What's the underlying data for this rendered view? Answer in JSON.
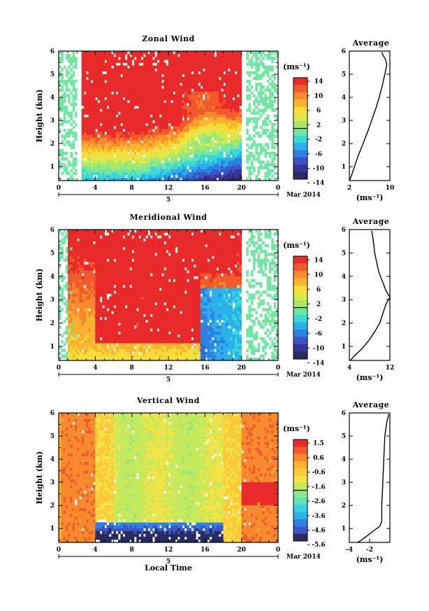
{
  "panels": [
    {
      "title": "Zonal Wind",
      "ylabel": "Height (km)",
      "yticks": [
        "1",
        "2",
        "3",
        "4",
        "5",
        "6"
      ],
      "xticks": [
        "0",
        "4",
        "8",
        "12",
        "16",
        "20",
        "0"
      ],
      "day_label": "5",
      "date_label": "Mar 2014",
      "colorbar": {
        "unit": "(ms⁻¹)",
        "ticks": [
          "14",
          "10",
          "6",
          "2",
          "-2",
          "-6",
          "-10",
          "-14"
        ],
        "colors": [
          "#e82a2a",
          "#f05a2c",
          "#f7892e",
          "#fbb22f",
          "#f9dc39",
          "#dbe94d",
          "#a9e76a",
          "#72e6a2",
          "#3bd8d8",
          "#2ab0ea",
          "#2f80e0",
          "#3c54c4",
          "#3a3595",
          "#2a2b60"
        ]
      },
      "average": {
        "title": "Average",
        "xticks": [
          "2",
          "10"
        ],
        "xlabel": "(ms⁻¹)",
        "xlim": [
          2,
          10
        ],
        "profile": [
          [
            2.0,
            0.4
          ],
          [
            2.4,
            0.6
          ],
          [
            3.0,
            1.0
          ],
          [
            3.8,
            1.5
          ],
          [
            4.7,
            2.0
          ],
          [
            5.6,
            2.5
          ],
          [
            6.4,
            3.0
          ],
          [
            7.2,
            3.5
          ],
          [
            7.9,
            4.0
          ],
          [
            8.5,
            4.5
          ],
          [
            9.0,
            5.0
          ],
          [
            9.4,
            5.4
          ],
          [
            9.2,
            5.6
          ],
          [
            8.7,
            5.8
          ],
          [
            8.4,
            5.95
          ]
        ]
      }
    },
    {
      "title": "Meridional Wind",
      "ylabel": "Height (km)",
      "yticks": [
        "1",
        "2",
        "3",
        "4",
        "5",
        "6"
      ],
      "xticks": [
        "0",
        "4",
        "8",
        "12",
        "16",
        "20",
        "0"
      ],
      "day_label": "5",
      "date_label": "Mar 2014",
      "colorbar": {
        "unit": "(ms⁻¹)",
        "ticks": [
          "14",
          "10",
          "6",
          "2",
          "-2",
          "-6",
          "-10",
          "-14"
        ],
        "colors": [
          "#e82a2a",
          "#f05a2c",
          "#f7892e",
          "#fbb22f",
          "#f9dc39",
          "#dbe94d",
          "#a9e76a",
          "#72e6a2",
          "#3bd8d8",
          "#2ab0ea",
          "#2f80e0",
          "#3c54c4",
          "#3a3595",
          "#2a2b60"
        ]
      },
      "average": {
        "title": "Average",
        "xticks": [
          "4",
          "12"
        ],
        "xlabel": "(ms⁻¹)",
        "xlim": [
          4,
          12
        ],
        "profile": [
          [
            4.2,
            0.4
          ],
          [
            5.0,
            0.6
          ],
          [
            6.5,
            0.9
          ],
          [
            8.0,
            1.3
          ],
          [
            9.2,
            1.7
          ],
          [
            10.0,
            2.0
          ],
          [
            10.6,
            2.4
          ],
          [
            11.2,
            2.8
          ],
          [
            12.0,
            3.1
          ],
          [
            11.2,
            3.4
          ],
          [
            10.5,
            3.8
          ],
          [
            9.8,
            4.2
          ],
          [
            9.4,
            4.6
          ],
          [
            9.0,
            5.0
          ],
          [
            8.8,
            5.4
          ],
          [
            8.6,
            5.7
          ],
          [
            8.4,
            5.95
          ]
        ]
      }
    },
    {
      "title": "Vertical Wind",
      "ylabel": "Height (km)",
      "yticks": [
        "1",
        "2",
        "3",
        "4",
        "5",
        "6"
      ],
      "xticks": [
        "0",
        "4",
        "8",
        "12",
        "16",
        "20",
        "0"
      ],
      "day_label": "5",
      "date_label": "Mar 2014",
      "xlabel": "Local Time",
      "colorbar": {
        "unit": "(ms⁻¹)",
        "ticks": [
          "1.5",
          "0.6",
          "-0.6",
          "-1.6",
          "-2.6",
          "-3.6",
          "-4.6",
          "-5.6"
        ],
        "colors": [
          "#e82a2a",
          "#f05a2c",
          "#f7892e",
          "#fbb22f",
          "#fbca3a",
          "#f2e348",
          "#c4e95c",
          "#8fe888",
          "#5ee0b8",
          "#38d0e0",
          "#2ab0ea",
          "#2f80e0",
          "#3c54c4",
          "#2a2b60"
        ]
      },
      "average": {
        "title": "Average",
        "xticks": [
          "-4",
          "-2"
        ],
        "xlabel": "(ms⁻¹)",
        "xlim": [
          -4,
          0
        ],
        "profile": [
          [
            -3.2,
            0.4
          ],
          [
            -2.8,
            0.5
          ],
          [
            -2.2,
            0.7
          ],
          [
            -1.6,
            0.9
          ],
          [
            -1.0,
            1.1
          ],
          [
            -0.8,
            1.3
          ],
          [
            -0.8,
            2.0
          ],
          [
            -0.7,
            3.0
          ],
          [
            -0.6,
            4.0
          ],
          [
            -0.5,
            5.0
          ],
          [
            -0.3,
            5.6
          ],
          [
            -0.1,
            5.95
          ]
        ]
      }
    }
  ],
  "chart_data": [
    {
      "type": "heatmap",
      "title": "Zonal Wind",
      "xlabel": "",
      "ylabel": "Height (km)",
      "xlim": [
        0,
        24
      ],
      "ylim": [
        0.4,
        6
      ],
      "colorbar_range": [
        -14,
        14
      ],
      "description_values": {
        "x_hours": [
          0,
          2,
          4,
          8,
          12,
          16,
          19,
          21,
          24
        ]
      }
    },
    {
      "type": "heatmap",
      "title": "Meridional Wind",
      "xlabel": "",
      "ylabel": "Height (km)",
      "xlim": [
        0,
        24
      ],
      "ylim": [
        0.4,
        6
      ],
      "colorbar_range": [
        -14,
        14
      ]
    },
    {
      "type": "heatmap",
      "title": "Vertical Wind",
      "xlabel": "Local Time",
      "ylabel": "Height (km)",
      "xlim": [
        0,
        24
      ],
      "ylim": [
        0.4,
        6
      ],
      "colorbar_range": [
        -5.6,
        1.5
      ]
    },
    {
      "type": "line",
      "title": "Average",
      "xlabel": "(ms⁻¹)",
      "series": [
        {
          "x": [
            2.0,
            3.0,
            4.7,
            6.4,
            7.9,
            9.0,
            9.4,
            8.4
          ],
          "y": [
            0.4,
            1.0,
            2.0,
            3.0,
            4.0,
            5.0,
            5.4,
            5.95
          ]
        }
      ]
    },
    {
      "type": "line",
      "title": "Average",
      "xlabel": "(ms⁻¹)",
      "series": [
        {
          "x": [
            4.2,
            6.5,
            10.0,
            11.2,
            12.0,
            9.8,
            9.0,
            8.4
          ],
          "y": [
            0.4,
            0.9,
            2.0,
            2.8,
            3.1,
            4.2,
            5.0,
            5.95
          ]
        }
      ]
    },
    {
      "type": "line",
      "title": "Average",
      "xlabel": "(ms⁻¹)",
      "series": [
        {
          "x": [
            -3.2,
            -1.6,
            -0.8,
            -0.7,
            -0.5,
            -0.1
          ],
          "y": [
            0.4,
            0.9,
            1.3,
            3.0,
            5.0,
            5.95
          ]
        }
      ]
    }
  ]
}
